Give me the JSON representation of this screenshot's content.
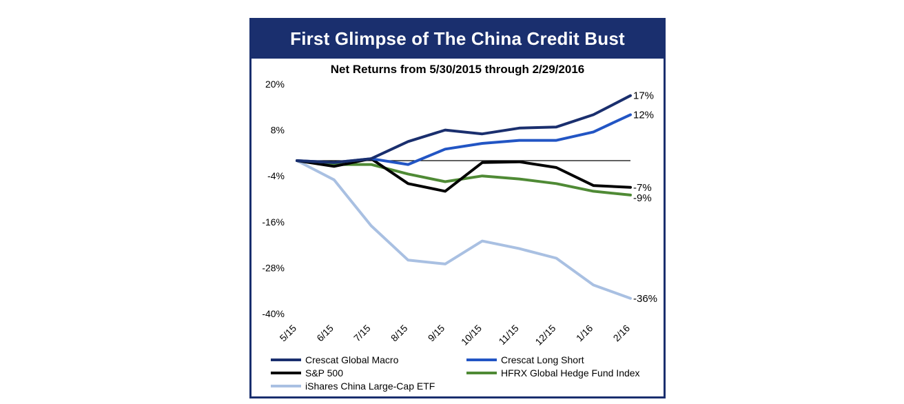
{
  "chart_data": {
    "type": "line",
    "title": "First Glimpse of The China Credit Bust",
    "subtitle": "Net Returns from 5/30/2015 through 2/29/2016",
    "xlabel": "",
    "ylabel": "",
    "categories": [
      "5/15",
      "6/15",
      "7/15",
      "8/15",
      "9/15",
      "10/15",
      "11/15",
      "12/15",
      "1/16",
      "2/16"
    ],
    "y_ticks": [
      "20%",
      "8%",
      "-4%",
      "-16%",
      "-28%",
      "-40%"
    ],
    "ylim": [
      -40,
      20
    ],
    "y_unit": "%",
    "grid": false,
    "zero_line": true,
    "legend_position": "bottom",
    "series": [
      {
        "name": "Crescat Global Macro",
        "color": "#1a2f6e",
        "values": [
          0,
          -0.5,
          0.5,
          5,
          8,
          7,
          8.5,
          8.8,
          12,
          17
        ],
        "end_label": "17%"
      },
      {
        "name": "Crescat Long Short",
        "color": "#2255c4",
        "values": [
          0,
          -0.5,
          0.5,
          -1,
          3,
          4.5,
          5.3,
          5.3,
          7.5,
          12
        ],
        "end_label": "12%"
      },
      {
        "name": "S&P 500",
        "color": "#000000",
        "values": [
          0,
          -1.5,
          0.5,
          -6,
          -8,
          -0.5,
          -0.3,
          -1.8,
          -6.5,
          -7
        ],
        "end_label": "-7%"
      },
      {
        "name": "HFRX Global Hedge Fund Index",
        "color": "#4f8a35",
        "values": [
          0,
          -1,
          -1,
          -3.5,
          -5.5,
          -4,
          -4.8,
          -6,
          -8,
          -9
        ],
        "end_label": "-9%"
      },
      {
        "name": "iShares China Large-Cap ETF",
        "color": "#a9c0e2",
        "values": [
          0,
          -5,
          -17,
          -26,
          -27,
          -21,
          -23,
          -25.5,
          -32.5,
          -36
        ],
        "end_label": "-36%"
      }
    ]
  }
}
